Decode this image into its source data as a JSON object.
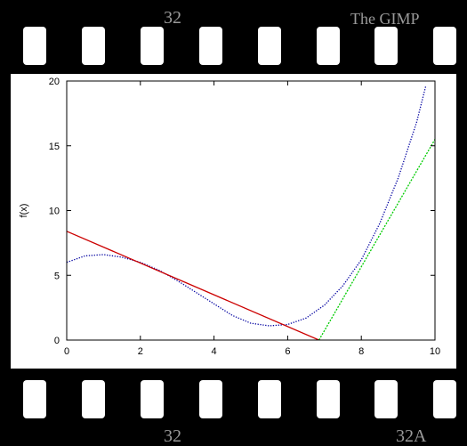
{
  "film": {
    "top_left_number": "32",
    "top_right_text": "The GIMP",
    "bottom_left_number": "32",
    "bottom_right_text": "32A"
  },
  "chart_data": {
    "type": "line",
    "title": "",
    "xlabel": "",
    "ylabel": "f(x)",
    "xlim": [
      0,
      10
    ],
    "ylim": [
      0,
      20
    ],
    "xticks": [
      0,
      2,
      4,
      6,
      8,
      10
    ],
    "yticks": [
      0,
      5,
      10,
      15,
      20
    ],
    "grid": false,
    "series": [
      {
        "style": "dotted",
        "color": "#0000a0",
        "x": [
          0,
          0.5,
          1,
          1.5,
          2,
          2.5,
          3,
          3.5,
          4,
          4.5,
          5,
          5.5,
          6,
          6.5,
          7,
          7.5,
          8,
          8.5,
          9,
          9.5,
          9.75
        ],
        "y": [
          6.0,
          6.5,
          6.6,
          6.4,
          6.0,
          5.4,
          4.6,
          3.7,
          2.8,
          1.9,
          1.3,
          1.1,
          1.2,
          1.7,
          2.7,
          4.2,
          6.2,
          9.0,
          12.5,
          16.8,
          19.6
        ]
      },
      {
        "style": "solid",
        "color": "#cc0000",
        "x": [
          0,
          6.85
        ],
        "y": [
          8.4,
          0
        ]
      },
      {
        "style": "dashed",
        "color": "#00cc00",
        "x": [
          6.85,
          10
        ],
        "y": [
          0,
          15.5
        ]
      }
    ]
  }
}
